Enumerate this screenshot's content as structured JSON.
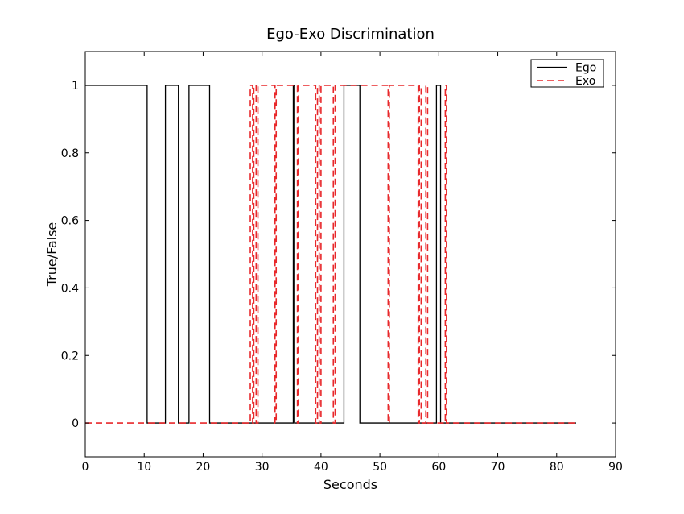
{
  "chart_data": {
    "type": "line",
    "title": "Ego-Exo Discrimination",
    "xlabel": "Seconds",
    "ylabel": "True/False",
    "xlim": [
      0,
      90
    ],
    "ylim": [
      -0.1,
      1.1
    ],
    "xticks": [
      0,
      10,
      20,
      30,
      40,
      50,
      60,
      70,
      80,
      90
    ],
    "yticks": [
      0,
      0.2,
      0.4,
      0.6,
      0.8,
      1
    ],
    "ytick_labels": [
      "0",
      "0.2",
      "0.4",
      "0.6",
      "0.8",
      "1"
    ],
    "grid": false,
    "legend_position": "top-right",
    "series": [
      {
        "name": "Ego",
        "color": "#000000",
        "style": "solid",
        "x": [
          0,
          10.5,
          10.5,
          13.6,
          13.6,
          15.8,
          15.8,
          17.6,
          17.6,
          21.1,
          21.1,
          35.3,
          35.3,
          35.5,
          35.5,
          43.9,
          43.9,
          46.6,
          46.6,
          59.6,
          59.6,
          60.3,
          60.3,
          83.3
        ],
        "y": [
          1,
          1,
          0,
          0,
          1,
          1,
          0,
          0,
          1,
          1,
          0,
          0,
          1,
          1,
          0,
          0,
          1,
          1,
          0,
          0,
          1,
          1,
          0,
          0
        ]
      },
      {
        "name": "Exo",
        "color": "#e8282b",
        "style": "dashed",
        "x": [
          0,
          28.0,
          28.0,
          28.4,
          28.4,
          28.6,
          28.6,
          29.0,
          29.0,
          29.3,
          29.3,
          32.2,
          32.2,
          32.4,
          32.4,
          36.0,
          36.0,
          36.2,
          36.2,
          39.1,
          39.1,
          39.4,
          39.4,
          39.7,
          39.7,
          40.0,
          40.0,
          42.1,
          42.1,
          42.4,
          42.4,
          51.4,
          51.4,
          51.6,
          51.6,
          56.5,
          56.5,
          56.7,
          56.7,
          57.0,
          57.0,
          57.8,
          57.8,
          58.1,
          58.1,
          61.1,
          61.1,
          61.3,
          61.3,
          83.3
        ],
        "y": [
          0,
          0,
          1,
          1,
          0,
          0,
          1,
          1,
          0,
          0,
          1,
          1,
          0,
          0,
          1,
          1,
          0,
          0,
          1,
          1,
          0,
          0,
          1,
          1,
          0,
          0,
          1,
          1,
          0,
          0,
          1,
          1,
          0,
          0,
          1,
          1,
          0,
          0,
          1,
          1,
          0,
          0,
          1,
          1,
          0,
          0,
          1,
          1,
          0,
          0
        ]
      }
    ]
  }
}
